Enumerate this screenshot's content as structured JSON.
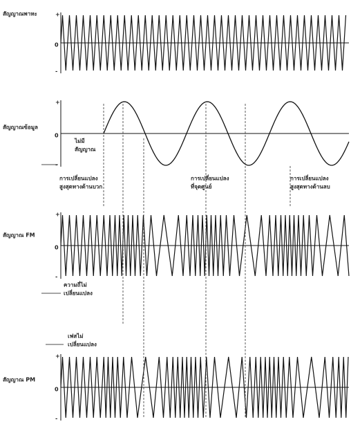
{
  "panels": [
    {
      "label": "สัญญาณพาหะ"
    },
    {
      "label": "สัญญาณข้อมูล"
    },
    {
      "label": "สัญญาณ FM"
    },
    {
      "label": "สัญญาณ PM"
    }
  ],
  "axis_marks": {
    "plus": "+",
    "zero": "0",
    "minus": "-"
  },
  "annotations": {
    "no_signal": [
      "ไม่มี",
      "สัญญาณ"
    ],
    "max_positive": [
      "การเปลี่ยนแปลง",
      "สูงสุดทางด้านบวก"
    ],
    "zero_point": [
      "การเปลี่ยนแปลง",
      "ที่จุดศูนย์"
    ],
    "max_negative": [
      "การเปลี่ยนแปลง",
      "สูงสุดทางด้านลบ"
    ],
    "freq_unchanged": [
      "ความถี่ไม่",
      "เปลี่ยนแปลง"
    ],
    "phase_unchanged": [
      "เฟสไม่",
      "เปลี่ยนแปลง"
    ]
  }
}
